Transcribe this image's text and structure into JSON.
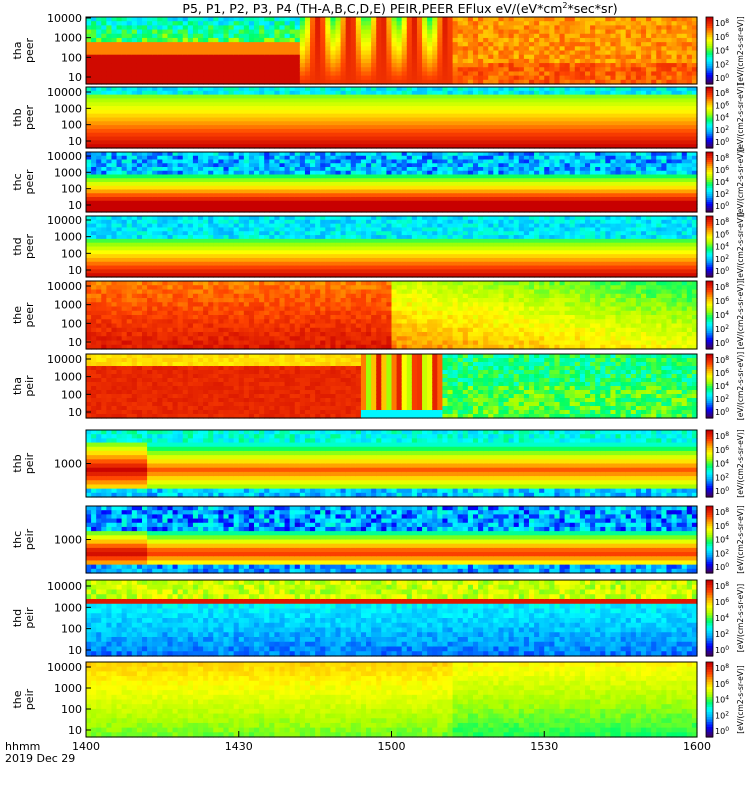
{
  "title": "P5, P1, P2, P3, P4 (TH-A,B,C,D,E) PEIR,PEER EFlux eV/(eV*cm",
  "title_sup": "2",
  "title_end": "*sec*sr)",
  "time_axis": {
    "ticks": [
      "1400",
      "1430",
      "1500",
      "1530",
      "1600"
    ],
    "row_label": "hhmm",
    "date_label": "2019 Dec 29"
  },
  "colorbar": {
    "tick_base": "10",
    "tick_exponents": [
      "8",
      "6",
      "4",
      "2",
      "0"
    ],
    "unit_label": "[eV/(cm2-s-sr-eV)]",
    "palette": [
      "#ffffff",
      "#5a0082",
      "#0000ff",
      "#00aaff",
      "#00ffff",
      "#00ff66",
      "#aaff00",
      "#ffff00",
      "#ffaa00",
      "#ff4400",
      "#cc0000"
    ]
  },
  "chart_data": [
    {
      "type": "heatmap",
      "probe": "tha",
      "species": "peer",
      "ylabel_probe": "tha",
      "ylabel_species": "peer",
      "yticks": [
        "10000",
        "1000",
        "100",
        "10"
      ],
      "x_range": [
        "1400",
        "1600"
      ],
      "y_scale": "log",
      "level_range": [
        0,
        8
      ]
    },
    {
      "type": "heatmap",
      "probe": "thb",
      "species": "peer",
      "ylabel_probe": "thb",
      "ylabel_species": "peer",
      "yticks": [
        "10000",
        "1000",
        "100",
        "10"
      ],
      "x_range": [
        "1400",
        "1600"
      ],
      "y_scale": "log",
      "level_range": [
        0,
        8
      ]
    },
    {
      "type": "heatmap",
      "probe": "thc",
      "species": "peer",
      "ylabel_probe": "thc",
      "ylabel_species": "peer",
      "yticks": [
        "10000",
        "1000",
        "100",
        "10"
      ],
      "x_range": [
        "1400",
        "1600"
      ],
      "y_scale": "log",
      "level_range": [
        0,
        8
      ]
    },
    {
      "type": "heatmap",
      "probe": "thd",
      "species": "peer",
      "ylabel_probe": "thd",
      "ylabel_species": "peer",
      "yticks": [
        "10000",
        "1000",
        "100",
        "10"
      ],
      "x_range": [
        "1400",
        "1600"
      ],
      "y_scale": "log",
      "level_range": [
        0,
        8
      ]
    },
    {
      "type": "heatmap",
      "probe": "the",
      "species": "peer",
      "ylabel_probe": "the",
      "ylabel_species": "peer",
      "yticks": [
        "10000",
        "1000",
        "100",
        "10"
      ],
      "x_range": [
        "1400",
        "1600"
      ],
      "y_scale": "log",
      "level_range": [
        0,
        8
      ]
    },
    {
      "type": "heatmap",
      "probe": "tha",
      "species": "peir",
      "ylabel_probe": "tha",
      "ylabel_species": "peir",
      "yticks": [
        "10000",
        "1000",
        "100",
        "10"
      ],
      "x_range": [
        "1400",
        "1600"
      ],
      "y_scale": "log",
      "level_range": [
        2,
        8
      ]
    },
    {
      "type": "heatmap",
      "probe": "thb",
      "species": "peir",
      "ylabel_probe": "thb",
      "ylabel_species": "peir",
      "yticks": [
        "1000"
      ],
      "x_range": [
        "1400",
        "1600"
      ],
      "y_scale": "log",
      "level_range": [
        2,
        8
      ]
    },
    {
      "type": "heatmap",
      "probe": "thc",
      "species": "peir",
      "ylabel_probe": "thc",
      "ylabel_species": "peir",
      "yticks": [
        "1000"
      ],
      "x_range": [
        "1400",
        "1600"
      ],
      "y_scale": "log",
      "level_range": [
        2,
        8
      ]
    },
    {
      "type": "heatmap",
      "probe": "thd",
      "species": "peir",
      "ylabel_probe": "thd",
      "ylabel_species": "peir",
      "yticks": [
        "10000",
        "1000",
        "100",
        "10"
      ],
      "x_range": [
        "1400",
        "1600"
      ],
      "y_scale": "log",
      "level_range": [
        0,
        8
      ]
    },
    {
      "type": "heatmap",
      "probe": "the",
      "species": "peir",
      "ylabel_probe": "the",
      "ylabel_species": "peir",
      "yticks": [
        "10000",
        "1000",
        "100",
        "10"
      ],
      "x_range": [
        "1400",
        "1600"
      ],
      "y_scale": "log",
      "level_range": [
        0,
        8
      ]
    }
  ]
}
